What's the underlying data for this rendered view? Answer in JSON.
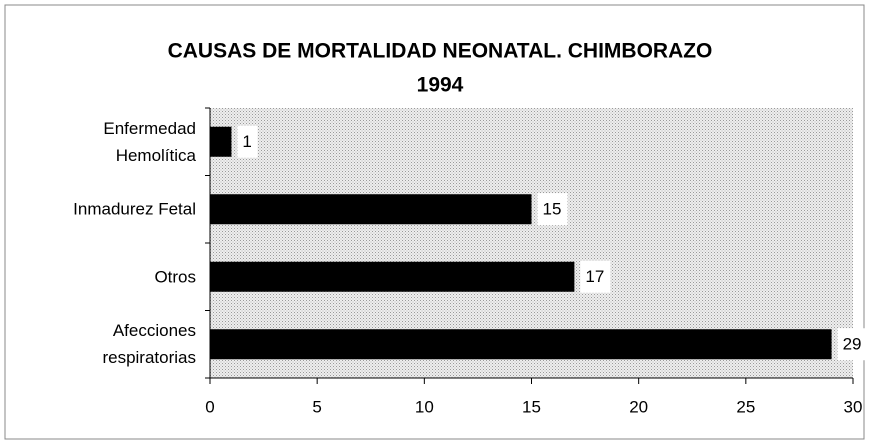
{
  "chart_data": {
    "type": "barh",
    "title": "CAUSAS DE MORTALIDAD NEONATAL. CHIMBORAZO",
    "subtitle": "1994",
    "categories": [
      "Enfermedad\nHemolítica",
      "Inmadurez Fetal",
      "Otros",
      "Afecciones\nrespiratorias"
    ],
    "values": [
      1,
      15,
      17,
      29
    ],
    "color": "#000000",
    "xlim": [
      0,
      30
    ],
    "xticks": [
      0,
      5,
      10,
      15,
      20,
      25,
      30
    ]
  }
}
